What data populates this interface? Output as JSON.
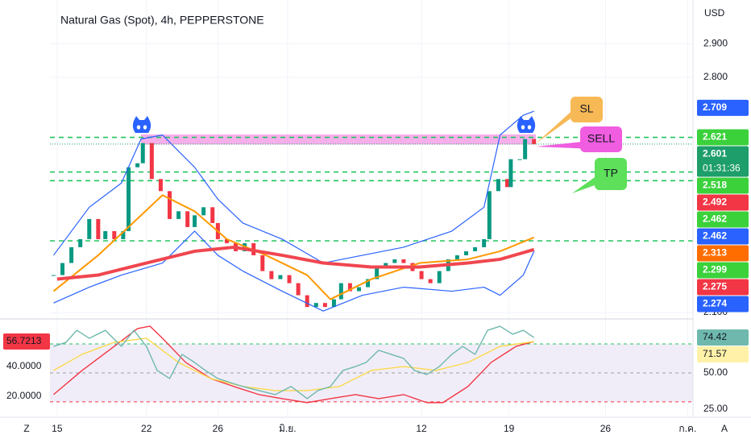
{
  "header": {
    "title": "Natural Gas (Spot), 4h, PEPPERSTONE",
    "currency": "USD",
    "scale_mode": "Z",
    "auto_scale": "A"
  },
  "annotations": [
    {
      "text": "SL",
      "color": "#f7b955"
    },
    {
      "text": "SELL",
      "color": "#f05de0"
    },
    {
      "text": "TP",
      "color": "#5ee05a"
    }
  ],
  "chart_data": [
    {
      "type": "candlestick",
      "up_color": "#089981",
      "down_color": "#f23645",
      "ylim": [
        2.09,
        3.03
      ],
      "yticks": [
        {
          "value": 2.1,
          "label": "2.100"
        },
        {
          "value": 2.8,
          "label": "2.800"
        },
        {
          "value": 2.9,
          "label": "2.900"
        }
      ],
      "grid": true,
      "x": [
        -0.2,
        0.3,
        0.8,
        1.3,
        1.8,
        2.3,
        2.7,
        3.2,
        3.7,
        4.0,
        4.5,
        4.8,
        5.3,
        5.8,
        6.3,
        6.8,
        7.3,
        7.7,
        8.2,
        8.7,
        9.0,
        9.5,
        10.0,
        10.5,
        11.0,
        11.5,
        12.0,
        12.5,
        13.0,
        13.5,
        14.0,
        14.5,
        15.0,
        15.5,
        15.9,
        16.4,
        16.9,
        17.4,
        17.9,
        18.4,
        18.9,
        19.4,
        19.9,
        20.4,
        20.9,
        21.4,
        21.9,
        22.4,
        22.9,
        23.4,
        23.9,
        24.2,
        24.7,
        25.2,
        25.4,
        25.9,
        26.2,
        26.7
      ],
      "values": [
        2.211,
        2.247,
        2.294,
        2.318,
        2.378,
        2.318,
        2.342,
        2.318,
        2.342,
        2.532,
        2.544,
        2.604,
        2.497,
        2.461,
        2.378,
        2.401,
        2.354,
        2.389,
        2.413,
        2.366,
        2.318,
        2.306,
        2.282,
        2.306,
        2.27,
        2.223,
        2.199,
        2.211,
        2.187,
        2.151,
        2.116,
        2.128,
        2.116,
        2.139,
        2.187,
        2.163,
        2.175,
        2.199,
        2.235,
        2.247,
        2.258,
        2.247,
        2.223,
        2.199,
        2.187,
        2.223,
        2.258,
        2.27,
        2.282,
        2.294,
        2.318,
        2.461,
        2.497,
        2.473,
        2.556,
        2.556,
        2.616,
        2.601
      ],
      "overlays": [
        {
          "color": "#2962ff",
          "width": 1.2,
          "x": [
            -0.2,
            1.8,
            3.6,
            4.7,
            5.9,
            7.7,
            9,
            10.4,
            12.6,
            14.9,
            17.1,
            19.4,
            22.1,
            23.9,
            24.8,
            26.1,
            26.7
          ],
          "values": [
            2.27,
            2.413,
            2.485,
            2.616,
            2.628,
            2.532,
            2.437,
            2.366,
            2.318,
            2.247,
            2.27,
            2.294,
            2.342,
            2.413,
            2.628,
            2.687,
            2.699
          ]
        },
        {
          "color": "#2962ff",
          "width": 1.2,
          "x": [
            -0.2,
            1.8,
            3.6,
            5.9,
            7.7,
            9,
            10.4,
            12.6,
            14.9,
            17.1,
            19.4,
            22.1,
            23.9,
            24.8,
            26.1,
            26.7
          ],
          "values": [
            2.128,
            2.175,
            2.211,
            2.247,
            2.342,
            2.27,
            2.223,
            2.163,
            2.104,
            2.151,
            2.175,
            2.163,
            2.175,
            2.151,
            2.211,
            2.282
          ]
        },
        {
          "color": "#ff9800",
          "width": 2,
          "x": [
            -0.2,
            2.3,
            4,
            5.9,
            7.7,
            9.5,
            11.7,
            14,
            15.3,
            17.6,
            20.3,
            23,
            24.8,
            26.7
          ],
          "values": [
            2.163,
            2.27,
            2.354,
            2.449,
            2.401,
            2.318,
            2.27,
            2.211,
            2.139,
            2.199,
            2.247,
            2.258,
            2.282,
            2.323
          ]
        },
        {
          "color": "#f0464f",
          "width": 4,
          "x": [
            0,
            2.3,
            5,
            7.7,
            9.9,
            12.6,
            14.9,
            17.6,
            20.3,
            23,
            24.8,
            26.7
          ],
          "values": [
            2.199,
            2.211,
            2.247,
            2.282,
            2.294,
            2.27,
            2.247,
            2.235,
            2.235,
            2.247,
            2.258,
            2.287
          ]
        }
      ],
      "zone": [
        2.6,
        2.63
      ],
      "zone_color": "#f59be6",
      "levels": [
        2.621,
        2.518,
        2.492,
        2.313
      ],
      "level_color": "#22c55e",
      "badges": [
        {
          "value": 2.709,
          "label": "2.709",
          "color": "#2962ff"
        },
        {
          "value": 2.621,
          "label": "2.621",
          "color": "#3bd13b"
        },
        {
          "value": 2.601,
          "label": "2.601",
          "sublabel": "01:31:36",
          "color": "#1e9e6a"
        },
        {
          "value": 2.518,
          "label": "2.518",
          "color": "#3bd13b"
        },
        {
          "value": 2.492,
          "label": "2.492",
          "color": "#f23645"
        },
        {
          "value": 2.462,
          "label": "2.462",
          "color": "#3bd13b"
        },
        {
          "value": 2.462,
          "label": "2.462",
          "color": "#2962ff"
        },
        {
          "value": 2.313,
          "label": "2.313",
          "color": "#ff6d00"
        },
        {
          "value": 2.299,
          "label": "2.299",
          "color": "#3bd13b"
        },
        {
          "value": 2.275,
          "label": "2.275",
          "color": "#f23645"
        },
        {
          "value": 2.274,
          "label": "2.274",
          "color": "#2962ff"
        }
      ]
    },
    {
      "type": "line",
      "xlim": [
        -0.4,
        35.6
      ],
      "xticks": [
        {
          "value": 0,
          "label": "15"
        },
        {
          "value": 5,
          "label": "22"
        },
        {
          "value": 9,
          "label": "26"
        },
        {
          "value": 12.9,
          "label": "มิ.ย."
        },
        {
          "value": 20.4,
          "label": "12"
        },
        {
          "value": 25.3,
          "label": "19"
        },
        {
          "value": 30.7,
          "label": "26"
        },
        {
          "value": 35.3,
          "label": "ก.ค."
        }
      ],
      "ylim": [
        19.4,
        85
      ],
      "yticks": [
        {
          "value": 50,
          "label": "50.00"
        },
        {
          "value": 25,
          "label": "25.00"
        }
      ],
      "y2lim": [
        5.9,
        69.7
      ],
      "y2ticks": [
        {
          "value": 40,
          "label": "40.0000"
        },
        {
          "value": 20,
          "label": "20.0000"
        }
      ],
      "levels": [
        {
          "value": 70,
          "color": "#22c55e"
        },
        {
          "value": 50,
          "color": "#9e9e9e"
        },
        {
          "value": 30,
          "color": "#f23645"
        }
      ],
      "band_color": "#f1edf8",
      "series": [
        {
          "color": "#f23645",
          "axis": "y2",
          "x": [
            -0.2,
            1.4,
            3.2,
            4.5,
            5.2,
            5.9,
            7.2,
            8.6,
            9.9,
            11.3,
            12.6,
            14.0,
            15.3,
            16.7,
            18.0,
            19.4,
            20.7,
            21.6,
            23.0,
            24.3,
            25.7,
            26.7
          ],
          "values": [
            21.1,
            37.3,
            53.5,
            65.4,
            67.0,
            58.9,
            42.7,
            31.9,
            26.5,
            21.1,
            18.4,
            15.7,
            18.4,
            21.1,
            18.4,
            21.1,
            15.7,
            15.7,
            26.5,
            42.7,
            53.5,
            56.7
          ]
        },
        {
          "color": "#fbd94a",
          "x": [
            -0.2,
            1.4,
            3.2,
            5.0,
            6.8,
            8.6,
            10.4,
            12.2,
            14.0,
            15.8,
            17.6,
            19.4,
            21.2,
            23.0,
            24.8,
            26.7
          ],
          "values": [
            51.7,
            62.8,
            71.1,
            73.9,
            57.2,
            46.1,
            40.6,
            37.8,
            37.8,
            40.6,
            51.7,
            54.4,
            51.7,
            57.2,
            68.3,
            71.6
          ]
        },
        {
          "color": "#6fb8ad",
          "x": [
            -0.2,
            0.5,
            1.1,
            1.8,
            2.7,
            3.6,
            4.3,
            5.0,
            5.6,
            6.3,
            7.0,
            7.7,
            8.3,
            9.0,
            9.7,
            10.4,
            11.3,
            12.2,
            13.1,
            14.0,
            14.6,
            15.3,
            16.0,
            16.7,
            17.3,
            18.0,
            18.7,
            19.4,
            20.0,
            20.7,
            21.4,
            22.1,
            22.7,
            23.4,
            24.1,
            24.8,
            25.5,
            26.1,
            26.7
          ],
          "values": [
            68.3,
            71.1,
            79.4,
            73.9,
            79.4,
            68.3,
            79.4,
            68.3,
            51.7,
            46.1,
            62.8,
            57.2,
            51.7,
            46.1,
            43.3,
            40.6,
            37.8,
            35.0,
            40.6,
            32.2,
            37.8,
            40.6,
            51.7,
            54.4,
            57.2,
            65.6,
            62.8,
            60.0,
            51.7,
            48.9,
            54.4,
            62.8,
            68.3,
            62.8,
            79.4,
            82.2,
            76.7,
            79.4,
            74.4
          ]
        }
      ],
      "badges": [
        {
          "value": 74.42,
          "label": "74.42",
          "color": "#6fb8ad",
          "text_color": "#131722"
        },
        {
          "value": 71.57,
          "label": "71.57",
          "color": "#fff2a8",
          "text_color": "#131722"
        },
        {
          "value": 56.7213,
          "label": "56.7213",
          "color": "#f23645",
          "text_color": "#ffffff",
          "axis": "y2"
        }
      ]
    }
  ]
}
